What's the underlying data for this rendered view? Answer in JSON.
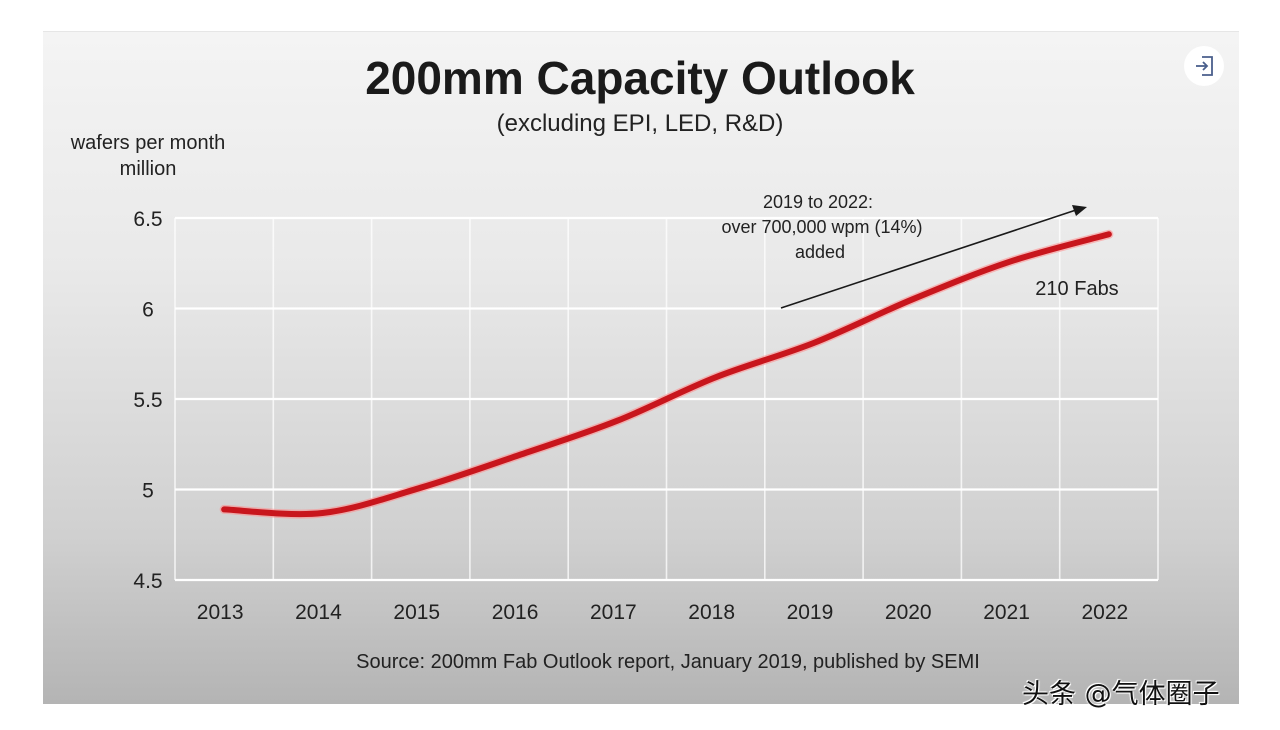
{
  "chart_data": {
    "type": "line",
    "title": "200mm Capacity Outlook",
    "subtitle": "(excluding EPI, LED, R&D)",
    "ylabel_lines": [
      "wafers per month",
      "million"
    ],
    "xlabel": "",
    "categories": [
      "2013",
      "2014",
      "2015",
      "2016",
      "2017",
      "2018",
      "2019",
      "2020",
      "2021",
      "2022"
    ],
    "series": [
      {
        "name": "200mm capacity",
        "color": "#c8161d",
        "values": [
          4.89,
          4.87,
          5.01,
          5.19,
          5.38,
          5.62,
          5.81,
          6.05,
          6.26,
          6.41
        ]
      }
    ],
    "ylim": [
      4.5,
      6.5
    ],
    "yticks": [
      4.5,
      5,
      5.5,
      6,
      6.5
    ],
    "ytick_labels": [
      "4.5",
      "5",
      "5.5",
      "6",
      "6.5"
    ],
    "grid": true,
    "annotations": [
      {
        "lines": [
          "2019 to 2022:",
          "over 700,000 wpm (14%)",
          "added"
        ],
        "type": "arrow-callout"
      },
      {
        "text": "210 Fabs",
        "type": "label"
      }
    ],
    "source": "Source: 200mm Fab Outlook report, January 2019, published by SEMI"
  },
  "ui": {
    "exit_icon": "exit-fullscreen-icon",
    "watermark": "头条 @气体圈子"
  }
}
